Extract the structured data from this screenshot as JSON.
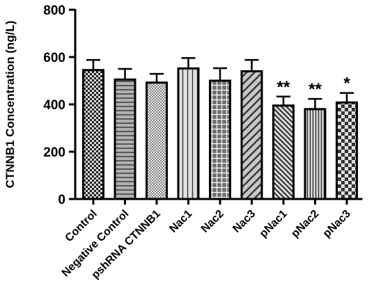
{
  "chart_data": {
    "type": "bar",
    "title": "",
    "xlabel": "",
    "ylabel": "CTNNB1 Concentration (ng/L)",
    "ylim": [
      0,
      800
    ],
    "yticks": [
      "0",
      "200",
      "400",
      "600",
      "800"
    ],
    "grid": false,
    "categories": [
      "Control",
      "Negative Control",
      "pshRNA CTNNB1",
      "Nac1",
      "Nac2",
      "Nac3",
      "pNac1",
      "pNac2",
      "pNac3"
    ],
    "values": [
      545,
      505,
      492,
      552,
      500,
      540,
      395,
      380,
      408
    ],
    "errors": [
      43,
      45,
      37,
      44,
      53,
      48,
      38,
      43,
      40
    ],
    "significance": [
      "",
      "",
      "",
      "",
      "",
      "",
      "**",
      "**",
      "*"
    ],
    "patterns": [
      "checker-fine",
      "horizontal-lines",
      "dots-fine",
      "vertical-lines",
      "grid",
      "diagonal",
      "diagonal-dense",
      "vertical-dense",
      "checker-large"
    ],
    "colors": {
      "bar_fill": "#c8c8c8",
      "stroke": "#000000"
    }
  }
}
